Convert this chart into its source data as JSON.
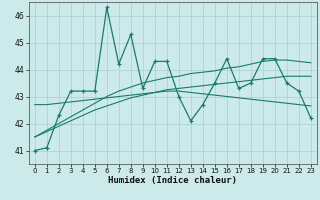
{
  "xlabel": "Humidex (Indice chaleur)",
  "x": [
    0,
    1,
    2,
    3,
    4,
    5,
    6,
    7,
    8,
    9,
    10,
    11,
    12,
    13,
    14,
    15,
    16,
    17,
    18,
    19,
    20,
    21,
    22,
    23
  ],
  "y_main": [
    41.0,
    41.1,
    42.3,
    43.2,
    43.2,
    43.2,
    46.3,
    44.2,
    45.3,
    43.3,
    44.3,
    44.3,
    43.0,
    42.1,
    42.7,
    43.5,
    44.4,
    43.3,
    43.5,
    44.4,
    44.4,
    43.5,
    43.2,
    42.2
  ],
  "y_smooth1": [
    42.7,
    42.7,
    42.75,
    42.8,
    42.85,
    42.9,
    42.95,
    43.0,
    43.05,
    43.1,
    43.15,
    43.2,
    43.2,
    43.15,
    43.1,
    43.05,
    43.0,
    42.95,
    42.9,
    42.85,
    42.8,
    42.75,
    42.7,
    42.65
  ],
  "y_trend_low": [
    41.5,
    41.7,
    41.9,
    42.1,
    42.3,
    42.5,
    42.65,
    42.8,
    42.95,
    43.05,
    43.15,
    43.25,
    43.3,
    43.35,
    43.4,
    43.45,
    43.5,
    43.55,
    43.6,
    43.65,
    43.7,
    43.75,
    43.75,
    43.75
  ],
  "y_trend_high": [
    41.5,
    41.75,
    42.0,
    42.25,
    42.5,
    42.75,
    43.0,
    43.2,
    43.35,
    43.5,
    43.6,
    43.7,
    43.75,
    43.85,
    43.9,
    43.95,
    44.05,
    44.1,
    44.2,
    44.3,
    44.35,
    44.35,
    44.3,
    44.25
  ],
  "ylim": [
    40.5,
    46.5
  ],
  "xlim": [
    -0.5,
    23.5
  ],
  "yticks": [
    41,
    42,
    43,
    44,
    45,
    46
  ],
  "xticks": [
    0,
    1,
    2,
    3,
    4,
    5,
    6,
    7,
    8,
    9,
    10,
    11,
    12,
    13,
    14,
    15,
    16,
    17,
    18,
    19,
    20,
    21,
    22,
    23
  ],
  "line_color": "#1a7a6e",
  "bg_color": "#cdeaea",
  "grid_color": "#aacece",
  "grid_minor_color": "#bcdcdc"
}
